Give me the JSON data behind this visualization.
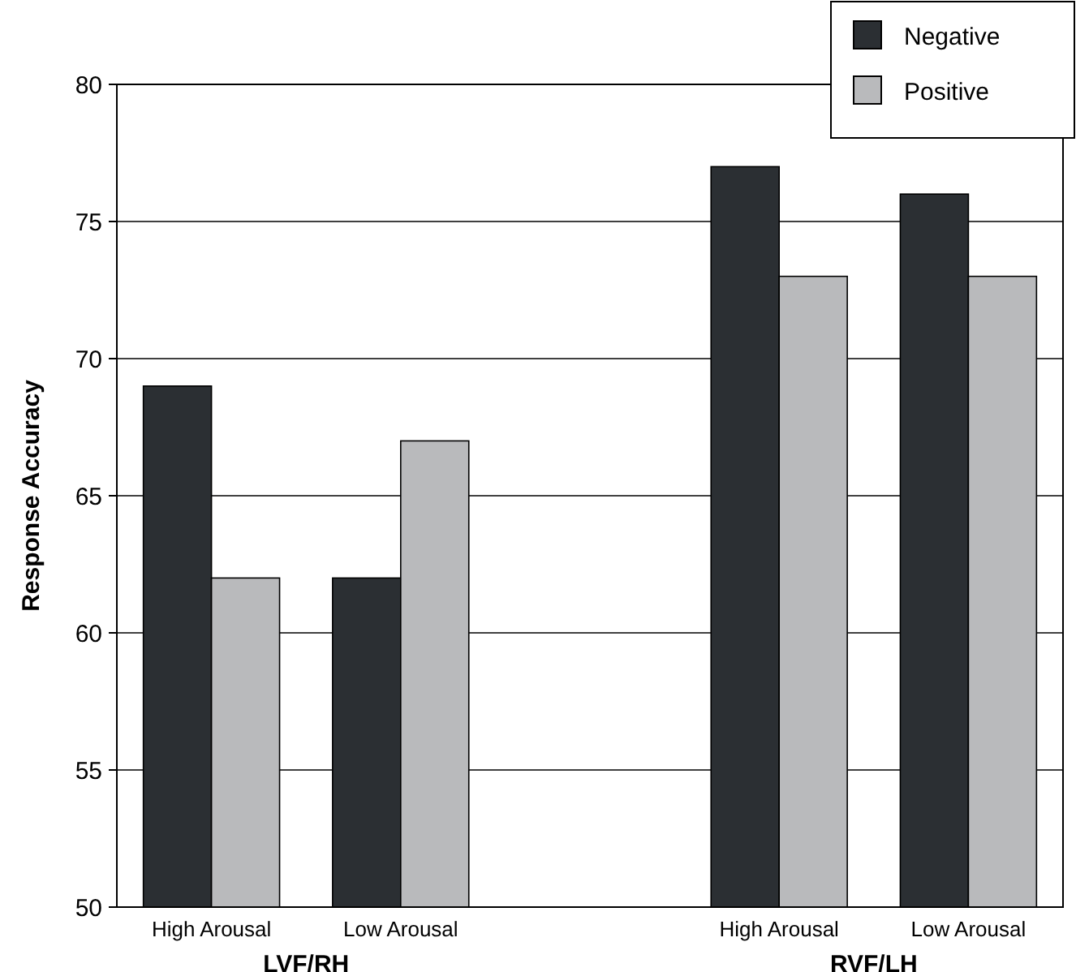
{
  "chart_data": {
    "type": "bar",
    "ylabel": "Response Accuracy",
    "categories": [
      "High Arousal",
      "Low Arousal",
      null,
      "High Arousal",
      "Low Arousal"
    ],
    "series": [
      {
        "name": "Negative",
        "color": "#2b2f33",
        "values": [
          69,
          62,
          null,
          77,
          76
        ]
      },
      {
        "name": "Positive",
        "color": "#b9babc",
        "values": [
          62,
          67,
          null,
          73,
          73
        ]
      }
    ],
    "annotations": [
      "LVF/RH",
      "RVF/LH"
    ],
    "ylim": [
      50,
      80
    ],
    "yticks": [
      50,
      55,
      60,
      65,
      70,
      75,
      80
    ],
    "grid": "y",
    "legend": "top right"
  }
}
